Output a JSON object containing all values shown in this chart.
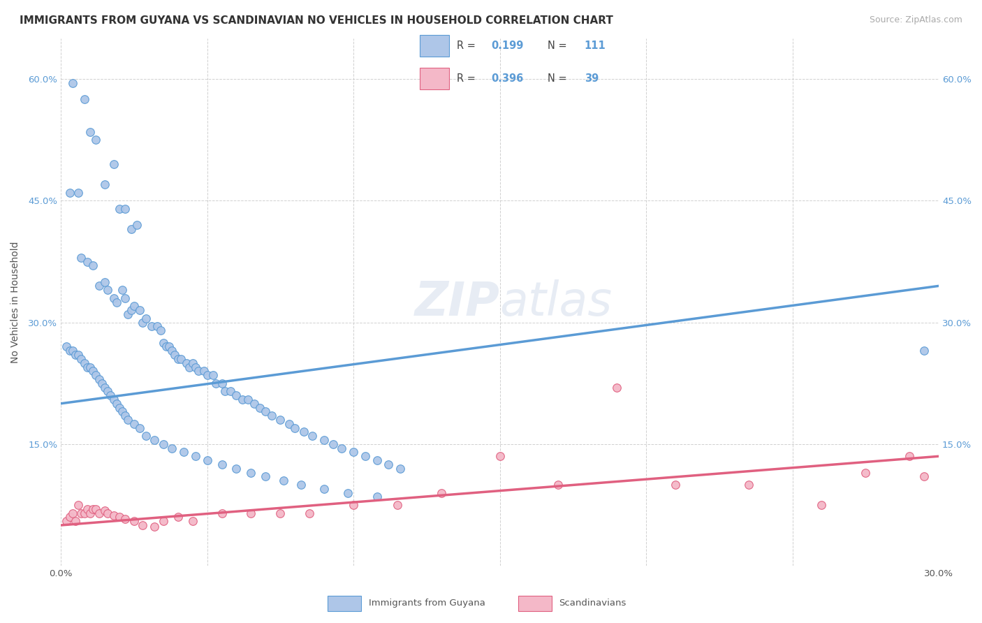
{
  "title": "IMMIGRANTS FROM GUYANA VS SCANDINAVIAN NO VEHICLES IN HOUSEHOLD CORRELATION CHART",
  "source": "Source: ZipAtlas.com",
  "ylabel_label": "No Vehicles in Household",
  "legend_entries": [
    {
      "label": "Immigrants from Guyana",
      "color": "#aec6e8",
      "line_color": "#5b9bd5",
      "R": "0.199",
      "N": "111"
    },
    {
      "label": "Scandinavians",
      "color": "#f4b8c8",
      "line_color": "#e06080",
      "R": "0.396",
      "N": "39"
    }
  ],
  "blue_scatter_x": [
    0.004,
    0.008,
    0.01,
    0.012,
    0.015,
    0.018,
    0.02,
    0.022,
    0.024,
    0.026,
    0.003,
    0.006,
    0.007,
    0.009,
    0.011,
    0.013,
    0.015,
    0.016,
    0.018,
    0.019,
    0.021,
    0.022,
    0.023,
    0.024,
    0.025,
    0.027,
    0.028,
    0.029,
    0.031,
    0.033,
    0.034,
    0.035,
    0.036,
    0.037,
    0.038,
    0.039,
    0.04,
    0.041,
    0.043,
    0.044,
    0.045,
    0.046,
    0.047,
    0.049,
    0.05,
    0.052,
    0.053,
    0.055,
    0.056,
    0.058,
    0.06,
    0.062,
    0.064,
    0.066,
    0.068,
    0.07,
    0.072,
    0.075,
    0.078,
    0.08,
    0.083,
    0.086,
    0.09,
    0.093,
    0.096,
    0.1,
    0.104,
    0.108,
    0.112,
    0.116,
    0.002,
    0.003,
    0.004,
    0.005,
    0.006,
    0.007,
    0.008,
    0.009,
    0.01,
    0.011,
    0.012,
    0.013,
    0.014,
    0.015,
    0.016,
    0.017,
    0.018,
    0.019,
    0.02,
    0.021,
    0.022,
    0.023,
    0.025,
    0.027,
    0.029,
    0.032,
    0.035,
    0.038,
    0.042,
    0.046,
    0.05,
    0.055,
    0.06,
    0.065,
    0.07,
    0.076,
    0.082,
    0.09,
    0.098,
    0.108,
    0.295
  ],
  "blue_scatter_y": [
    0.595,
    0.575,
    0.535,
    0.525,
    0.47,
    0.495,
    0.44,
    0.44,
    0.415,
    0.42,
    0.46,
    0.46,
    0.38,
    0.375,
    0.37,
    0.345,
    0.35,
    0.34,
    0.33,
    0.325,
    0.34,
    0.33,
    0.31,
    0.315,
    0.32,
    0.315,
    0.3,
    0.305,
    0.295,
    0.295,
    0.29,
    0.275,
    0.27,
    0.27,
    0.265,
    0.26,
    0.255,
    0.255,
    0.25,
    0.245,
    0.25,
    0.245,
    0.24,
    0.24,
    0.235,
    0.235,
    0.225,
    0.225,
    0.215,
    0.215,
    0.21,
    0.205,
    0.205,
    0.2,
    0.195,
    0.19,
    0.185,
    0.18,
    0.175,
    0.17,
    0.165,
    0.16,
    0.155,
    0.15,
    0.145,
    0.14,
    0.135,
    0.13,
    0.125,
    0.12,
    0.27,
    0.265,
    0.265,
    0.26,
    0.26,
    0.255,
    0.25,
    0.245,
    0.245,
    0.24,
    0.235,
    0.23,
    0.225,
    0.22,
    0.215,
    0.21,
    0.205,
    0.2,
    0.195,
    0.19,
    0.185,
    0.18,
    0.175,
    0.17,
    0.16,
    0.155,
    0.15,
    0.145,
    0.14,
    0.135,
    0.13,
    0.125,
    0.12,
    0.115,
    0.11,
    0.105,
    0.1,
    0.095,
    0.09,
    0.085,
    0.265
  ],
  "pink_scatter_x": [
    0.002,
    0.003,
    0.004,
    0.005,
    0.006,
    0.007,
    0.008,
    0.009,
    0.01,
    0.011,
    0.012,
    0.013,
    0.015,
    0.016,
    0.018,
    0.02,
    0.022,
    0.025,
    0.028,
    0.032,
    0.035,
    0.04,
    0.045,
    0.055,
    0.065,
    0.075,
    0.085,
    0.1,
    0.115,
    0.13,
    0.15,
    0.17,
    0.19,
    0.21,
    0.235,
    0.26,
    0.275,
    0.29,
    0.295
  ],
  "pink_scatter_y": [
    0.055,
    0.06,
    0.065,
    0.055,
    0.075,
    0.065,
    0.065,
    0.07,
    0.065,
    0.07,
    0.07,
    0.065,
    0.068,
    0.065,
    0.062,
    0.06,
    0.058,
    0.055,
    0.05,
    0.048,
    0.055,
    0.06,
    0.055,
    0.065,
    0.065,
    0.065,
    0.065,
    0.075,
    0.075,
    0.09,
    0.135,
    0.1,
    0.22,
    0.1,
    0.1,
    0.075,
    0.115,
    0.135,
    0.11
  ],
  "blue_line": {
    "x0": 0.0,
    "x1": 0.3,
    "y0": 0.2,
    "y1": 0.345
  },
  "pink_line": {
    "x0": 0.0,
    "x1": 0.3,
    "y0": 0.05,
    "y1": 0.135
  },
  "xlim": [
    0.0,
    0.3
  ],
  "ylim": [
    0.0,
    0.65
  ],
  "xticks": [
    0.0,
    0.05,
    0.1,
    0.15,
    0.2,
    0.25,
    0.3
  ],
  "xtick_labels": [
    "0.0%",
    "",
    "",
    "",
    "",
    "",
    "30.0%"
  ],
  "yticks": [
    0.0,
    0.15,
    0.3,
    0.45,
    0.6
  ],
  "ytick_labels": [
    "",
    "15.0%",
    "30.0%",
    "45.0%",
    "60.0%"
  ],
  "bg_color": "#ffffff",
  "grid_color": "#d0d0d0",
  "blue_color": "#5b9bd5",
  "blue_scatter_color": "#aec6e8",
  "pink_color": "#e06080",
  "pink_scatter_color": "#f4b8c8",
  "title_fontsize": 11,
  "source_fontsize": 9,
  "axis_label_fontsize": 10,
  "tick_fontsize": 9.5,
  "marker_size": 70
}
